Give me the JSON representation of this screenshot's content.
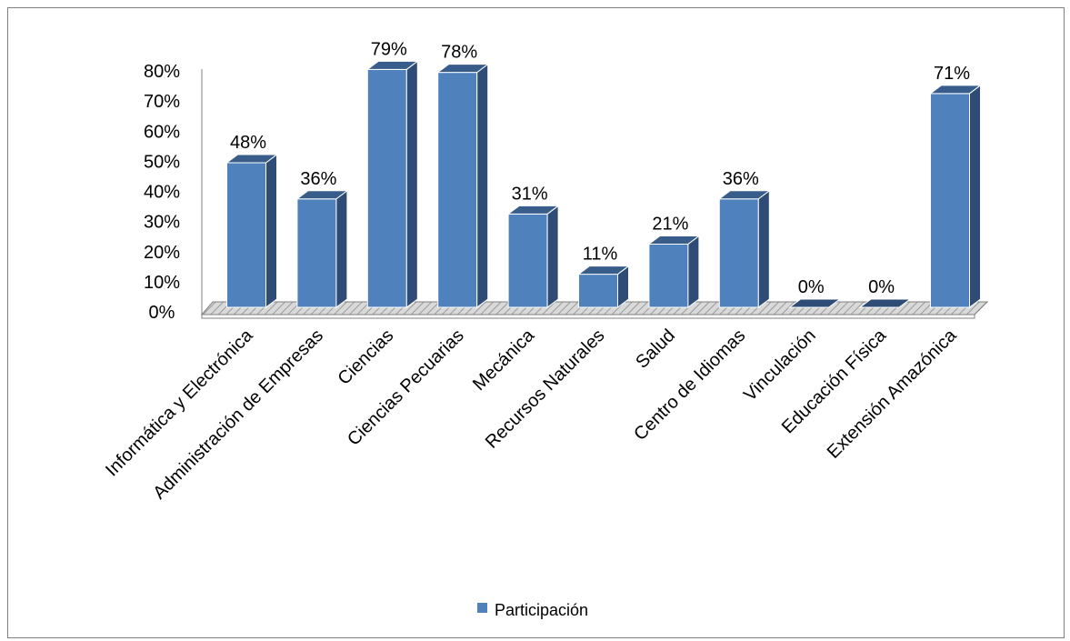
{
  "chart_data": {
    "type": "bar",
    "style": "3d-column",
    "categories": [
      "Informática y Electrónica",
      "Administración de Empresas",
      "Ciencias",
      "Ciencias Pecuarias",
      "Mecánica",
      "Recursos Naturales",
      "Salud",
      "Centro de Idiomas",
      "Vinculación",
      "Educación Física",
      "Extensión Amazónica"
    ],
    "series": [
      {
        "name": "Participación",
        "values": [
          48,
          36,
          79,
          78,
          31,
          11,
          21,
          36,
          0,
          0,
          71
        ],
        "labels": [
          "48%",
          "36%",
          "79%",
          "78%",
          "31%",
          "11%",
          "21%",
          "36%",
          "0%",
          "0%",
          "71%"
        ]
      }
    ],
    "ylim": [
      0,
      80
    ],
    "yticks": [
      0,
      10,
      20,
      30,
      40,
      50,
      60,
      70,
      80
    ],
    "ytick_labels": [
      "0%",
      "10%",
      "20%",
      "30%",
      "40%",
      "50%",
      "60%",
      "70%",
      "80%"
    ],
    "grid": false,
    "legend": "bottom",
    "colors": {
      "bar_front": "#4f81bd",
      "bar_side": "#2e4c75",
      "bar_top": "#385d8a",
      "floor": "#bfbfbf"
    }
  }
}
